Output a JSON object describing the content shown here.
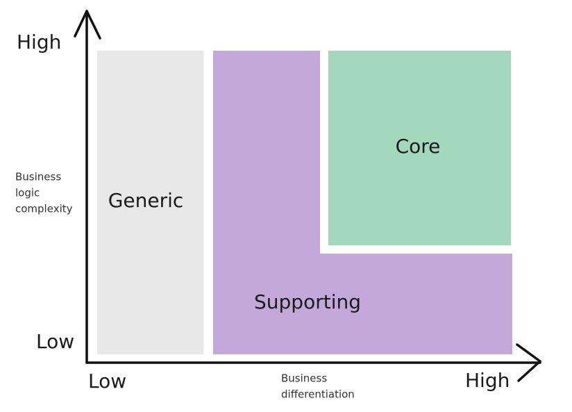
{
  "y_axis": {
    "high": "High",
    "low": "Low",
    "label_lines": [
      "Business",
      "logic",
      "complexity"
    ]
  },
  "x_axis": {
    "low": "Low",
    "high": "High",
    "label_lines": [
      "Business",
      "differentiation"
    ]
  },
  "regions": {
    "generic": "Generic",
    "supporting": "Supporting",
    "core": "Core"
  }
}
